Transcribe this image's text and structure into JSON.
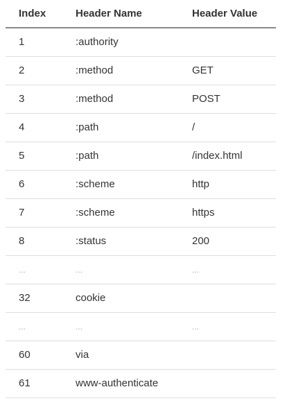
{
  "table": {
    "headers": [
      "Index",
      "Header Name",
      "Header Value"
    ],
    "rows": [
      {
        "index": "1",
        "name": ":authority",
        "value": "",
        "ellipsis": false
      },
      {
        "index": "2",
        "name": ":method",
        "value": "GET",
        "ellipsis": false
      },
      {
        "index": "3",
        "name": ":method",
        "value": "POST",
        "ellipsis": false
      },
      {
        "index": "4",
        "name": ":path",
        "value": "/",
        "ellipsis": false
      },
      {
        "index": "5",
        "name": ":path",
        "value": "/index.html",
        "ellipsis": false
      },
      {
        "index": "6",
        "name": ":scheme",
        "value": "http",
        "ellipsis": false
      },
      {
        "index": "7",
        "name": ":scheme",
        "value": "https",
        "ellipsis": false
      },
      {
        "index": "8",
        "name": ":status",
        "value": "200",
        "ellipsis": false
      },
      {
        "index": "...",
        "name": "...",
        "value": "...",
        "ellipsis": true
      },
      {
        "index": "32",
        "name": "cookie",
        "value": "",
        "ellipsis": false
      },
      {
        "index": "...",
        "name": "...",
        "value": "...",
        "ellipsis": true
      },
      {
        "index": "60",
        "name": "via",
        "value": "",
        "ellipsis": false
      },
      {
        "index": "61",
        "name": "www-authenticate",
        "value": "",
        "ellipsis": false
      }
    ]
  }
}
